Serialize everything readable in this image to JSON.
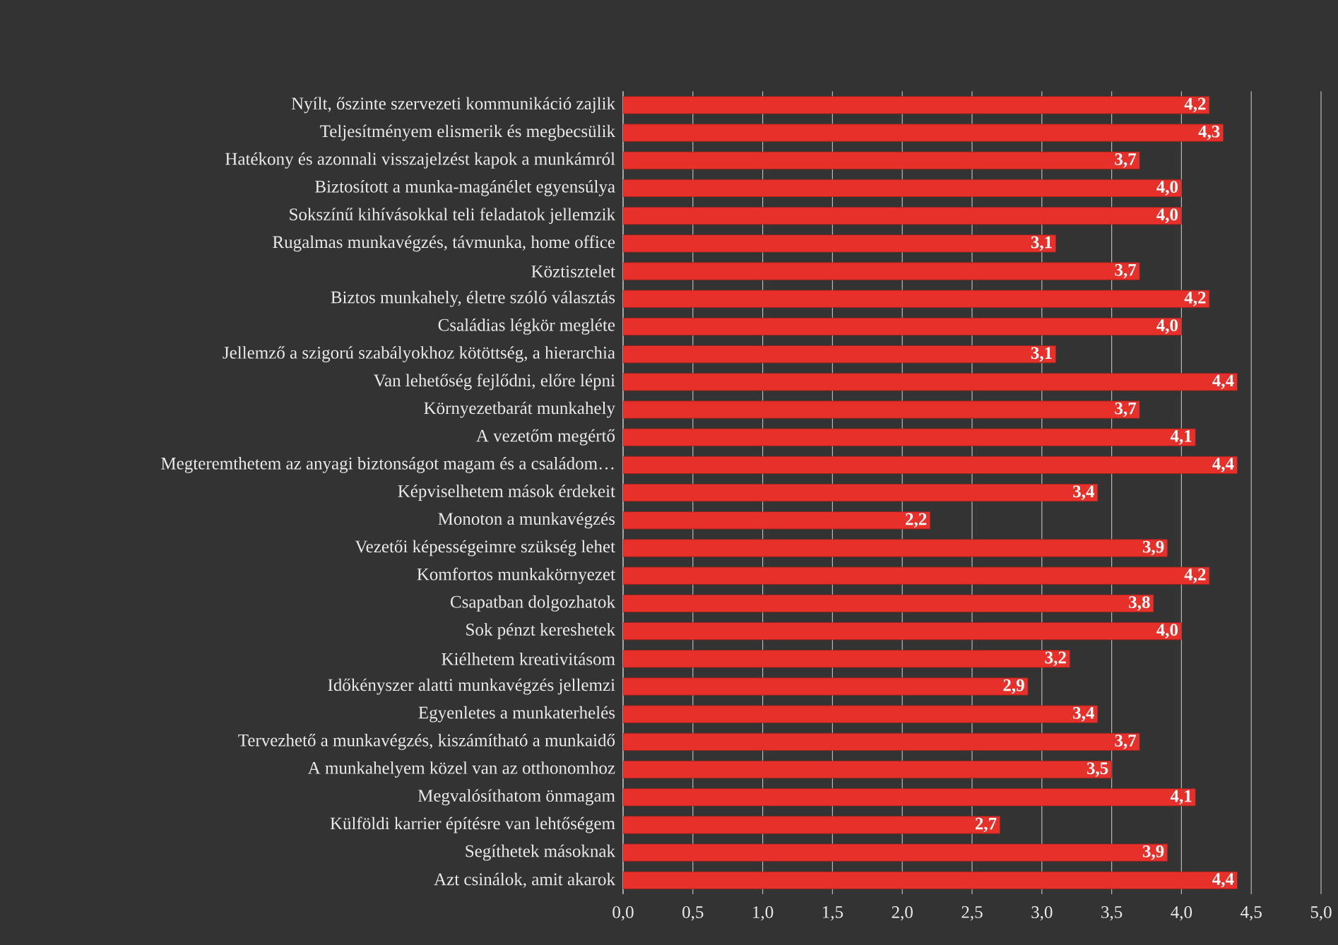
{
  "chart_data": {
    "type": "bar",
    "orientation": "horizontal",
    "categories": [
      "Nyílt, őszinte szervezeti kommunikáció zajlik",
      "Teljesítményem elismerik és megbecsülik",
      "Hatékony és azonnali visszajelzést kapok a munkámról",
      "Biztosított a munka-magánélet egyensúlya",
      "Sokszínű kihívásokkal teli feladatok jellemzik",
      "Rugalmas munkavégzés, távmunka, home office",
      "Köztisztelet",
      "Biztos munkahely, életre szóló választás",
      "Családias légkör megléte",
      "Jellemző a szigorú szabályokhoz kötöttség, a hierarchia",
      "Van lehetőség fejlődni, előre lépni",
      "Környezetbarát munkahely",
      "A vezetőm megértő",
      "Megteremthetem az anyagi biztonságot magam és a családom…",
      "Képviselhetem mások érdekeit",
      "Monoton a munkavégzés",
      "Vezetői képességeimre szükség lehet",
      "Komfortos munkakörnyezet",
      "Csapatban dolgozhatok",
      "Sok pénzt kereshetek",
      "Kiélhetem kreativitásom",
      "Időkényszer alatti munkavégzés jellemzi",
      "Egyenletes a munkaterhelés",
      "Tervezhető a munkavégzés, kiszámítható a munkaidő",
      "A munkahelyem közel van az otthonomhoz",
      "Megvalósíthatom önmagam",
      "Külföldi karrier építésre van lehtőségem",
      "Segíthetek másoknak",
      "Azt csinálok, amit akarok"
    ],
    "values": [
      4.2,
      4.3,
      3.7,
      4.0,
      4.0,
      3.1,
      3.7,
      4.2,
      4.0,
      3.1,
      4.4,
      3.7,
      4.1,
      4.4,
      3.4,
      2.2,
      3.9,
      4.2,
      3.8,
      4.0,
      3.2,
      2.9,
      3.4,
      3.7,
      3.5,
      4.1,
      2.7,
      3.9,
      4.4
    ],
    "value_labels": [
      "4,2",
      "4,3",
      "3,7",
      "4,0",
      "4,0",
      "3,1",
      "3,7",
      "4,2",
      "4,0",
      "3,1",
      "4,4",
      "3,7",
      "4,1",
      "4,4",
      "3,4",
      "2,2",
      "3,9",
      "4,2",
      "3,8",
      "4,0",
      "3,2",
      "2,9",
      "3,4",
      "3,7",
      "3,5",
      "4,1",
      "2,7",
      "3,9",
      "4,4"
    ],
    "color": "#e8302a",
    "xlim": [
      0,
      5
    ],
    "xticks": [
      {
        "value": 0,
        "label": "0,0"
      },
      {
        "value": 0.5,
        "label": "0,5"
      },
      {
        "value": 1,
        "label": "1,0"
      },
      {
        "value": 1.5,
        "label": "1,5"
      },
      {
        "value": 2,
        "label": "2,0"
      },
      {
        "value": 2.5,
        "label": "2,5"
      },
      {
        "value": 3,
        "label": "3,0"
      },
      {
        "value": 3.5,
        "label": "3,5"
      },
      {
        "value": 4,
        "label": "4,0"
      },
      {
        "value": 4.5,
        "label": "4,5"
      },
      {
        "value": 5,
        "label": "5,0"
      }
    ],
    "grid": "x"
  }
}
